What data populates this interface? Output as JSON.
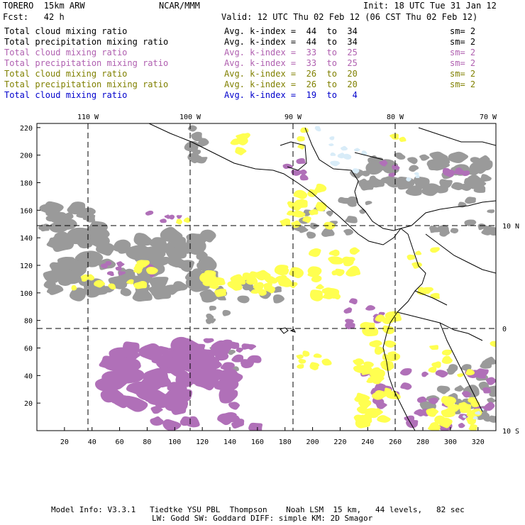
{
  "header": {
    "model": "TORERO  15km ARW",
    "org": "NCAR/MMM",
    "init": "Init: 18 UTC Tue 31 Jan 12",
    "fcst": "Fcst:   42 h",
    "valid": "Valid: 12 UTC Thu 02 Feb 12 (06 CST Thu 02 Feb 12)"
  },
  "legend": [
    {
      "field": "Total cloud mixing ratio",
      "index": "Avg. k-index =  44  to  34",
      "sm": "sm= 2",
      "color": "#000000"
    },
    {
      "field": "Total precipitation mixing ratio",
      "index": "Avg. k-index =  44  to  34",
      "sm": "sm= 2",
      "color": "#000000"
    },
    {
      "field": "Total cloud mixing ratio",
      "index": "Avg. k-index =  33  to  25",
      "sm": "sm= 2",
      "color": "#b060b0"
    },
    {
      "field": "Total precipitation mixing ratio",
      "index": "Avg. k-index =  33  to  25",
      "sm": "sm= 2",
      "color": "#b060b0"
    },
    {
      "field": "Total cloud mixing ratio",
      "index": "Avg. k-index =  26  to  20",
      "sm": "sm= 2",
      "color": "#808000"
    },
    {
      "field": "Total precipitation mixing ratio",
      "index": "Avg. k-index =  26  to  20",
      "sm": "sm= 2",
      "color": "#808000"
    },
    {
      "field": "Total cloud mixing ratio",
      "index": "Avg. k-index =  19  to   4",
      "sm": "",
      "color": "#0000cc"
    }
  ],
  "map": {
    "lon_labels": [
      "110 W",
      "100 W",
      "90 W",
      "80 W",
      "70 W"
    ],
    "lat_labels": [
      "10 N",
      "0",
      "10 S"
    ],
    "x_ticks": [
      "20",
      "40",
      "60",
      "80",
      "100",
      "120",
      "140",
      "160",
      "180",
      "200",
      "220",
      "240",
      "260",
      "280",
      "300",
      "320"
    ],
    "y_ticks": [
      "20",
      "40",
      "60",
      "80",
      "100",
      "120",
      "140",
      "160",
      "180",
      "200",
      "220"
    ],
    "colors": {
      "gray": "#9a9a9a",
      "purple": "#b070b8",
      "yellow": "#ffff50",
      "lightblue": "#d8ecf8",
      "frame": "#000000"
    }
  },
  "footer": {
    "line1": "Model Info: V3.3.1   Tiedtke YSU PBL  Thompson    Noah LSM  15 km,   44 levels,   82 sec",
    "line2": "LW: Godd SW: Goddard DIFF: simple KM: 2D Smagor"
  }
}
